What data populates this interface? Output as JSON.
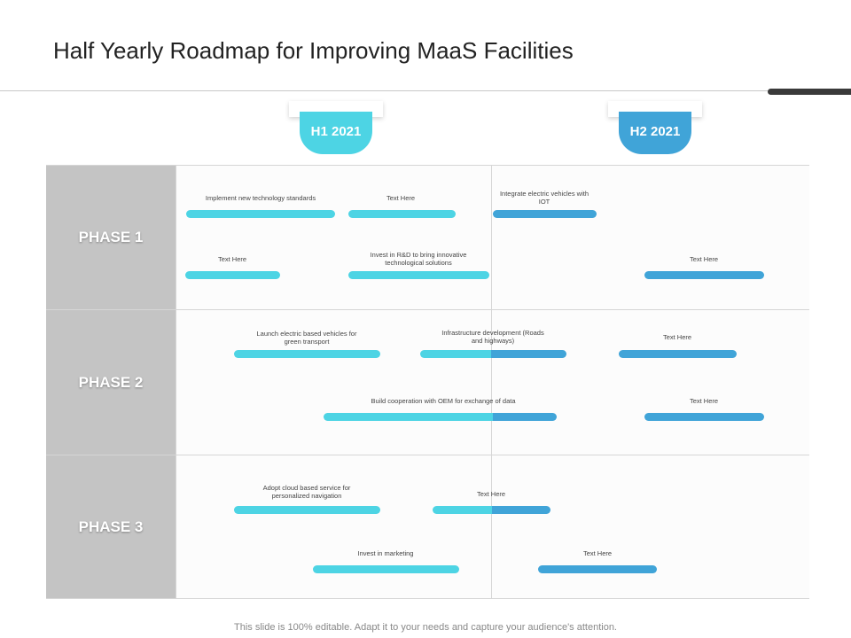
{
  "title": "Half Yearly Roadmap for Improving MaaS Facilities",
  "colors": {
    "h1": "#4dd4e4",
    "h2": "#40a4d8"
  },
  "halves": [
    {
      "label": "H1 2021"
    },
    {
      "label": "H2 2021"
    }
  ],
  "phases": [
    {
      "label": "PHASE 1"
    },
    {
      "label": "PHASE 2"
    },
    {
      "label": "PHASE 3"
    }
  ],
  "tasks": [
    {
      "text": "Implement new technology standards"
    },
    {
      "text": "Text Here"
    },
    {
      "text": "Integrate electric vehicles with IOT"
    },
    {
      "text": "Text Here"
    },
    {
      "text": "Invest in R&D to bring innovative technological solutions"
    },
    {
      "text": "Text Here"
    },
    {
      "text": "Launch electric based vehicles for green transport"
    },
    {
      "text": "Infrastructure development (Roads and highways)"
    },
    {
      "text": "Text Here"
    },
    {
      "text": "Build cooperation with OEM for exchange of data"
    },
    {
      "text": "Text Here"
    },
    {
      "text": "Adopt cloud based service for personalized navigation"
    },
    {
      "text": "Text Here"
    },
    {
      "text": "Invest in marketing"
    },
    {
      "text": "Text Here"
    }
  ],
  "footer": "This slide is 100% editable. Adapt it to your needs and capture your audience's attention."
}
